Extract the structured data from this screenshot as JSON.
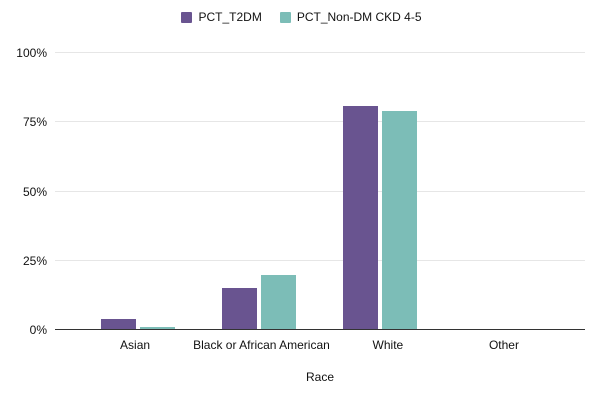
{
  "chart_data": {
    "type": "bar",
    "categories": [
      "Asian",
      "Black or African American",
      "White",
      "Other"
    ],
    "series": [
      {
        "name": "PCT_T2DM",
        "color": "#695490",
        "values": [
          4,
          15,
          81,
          0
        ]
      },
      {
        "name": "PCT_Non-DM CKD 4-5",
        "color": "#7CBDB7",
        "values": [
          1,
          20,
          79,
          0
        ]
      }
    ],
    "xlabel": "Race",
    "ylabel": "",
    "ylim": [
      0,
      100
    ],
    "y_ticks": [
      {
        "value": 0,
        "label": "0%"
      },
      {
        "value": 25,
        "label": "25%"
      },
      {
        "value": 50,
        "label": "50%"
      },
      {
        "value": 75,
        "label": "75%"
      },
      {
        "value": 100,
        "label": "100%"
      }
    ],
    "grid": true,
    "legend_position": "top",
    "colors": {
      "background": "#ffffff",
      "gridline": "#e6e6e6",
      "axis_line": "#333333",
      "text": "#111111"
    }
  }
}
